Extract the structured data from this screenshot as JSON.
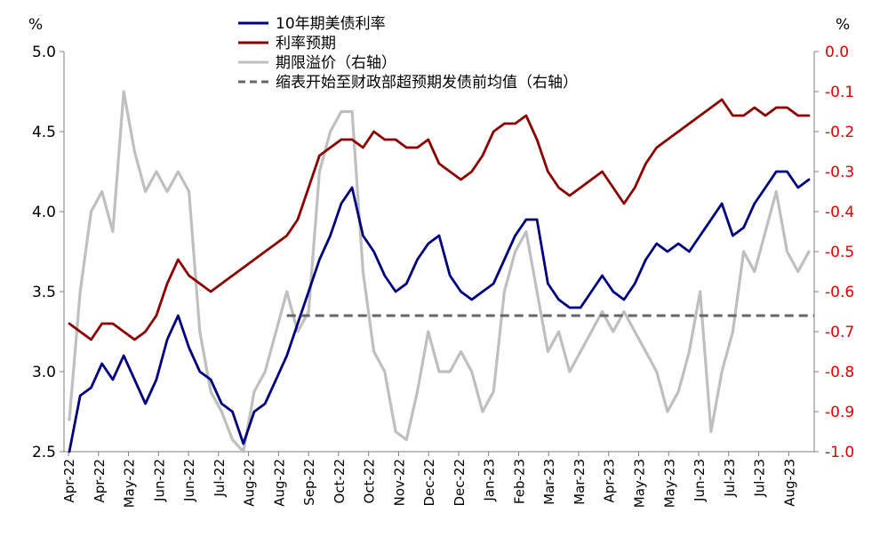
{
  "chart_data": {
    "type": "line",
    "title": "",
    "y_left": {
      "unit": "%",
      "range": [
        2.5,
        5.0
      ],
      "ticks": [
        "5.0",
        "4.5",
        "4.0",
        "3.5",
        "3.0",
        "2.5"
      ]
    },
    "y_right": {
      "unit": "%",
      "range": [
        -1.0,
        0.0
      ],
      "ticks": [
        "0.0",
        "-0.1",
        "-0.2",
        "-0.3",
        "-0.4",
        "-0.5",
        "-0.6",
        "-0.7",
        "-0.8",
        "-0.9",
        "-1.0"
      ],
      "color": "#e00000"
    },
    "x_ticks": [
      "Apr-22",
      "Apr-22",
      "May-22",
      "Jun-22",
      "Jun-22",
      "Jul-22",
      "Aug-22",
      "Aug-22",
      "Sep-22",
      "Oct-22",
      "Oct-22",
      "Nov-22",
      "Dec-22",
      "Dec-22",
      "Jan-23",
      "Feb-23",
      "Mar-23",
      "Mar-23",
      "Apr-23",
      "May-23",
      "May-23",
      "Jun-23",
      "Jul-23",
      "Jul-23",
      "Aug-23"
    ],
    "legend": [
      {
        "label": "10年期美债利率",
        "color": "#00007f",
        "style": "solid"
      },
      {
        "label": "利率预期",
        "color": "#8b0000",
        "style": "solid"
      },
      {
        "label": "期限溢价（右轴）",
        "color": "#bfbfbf",
        "style": "solid"
      },
      {
        "label": "缩表开始至财政部超预期发债前均值（右轴）",
        "color": "#666666",
        "style": "dashed"
      }
    ],
    "series": [
      {
        "name": "10年期美债利率",
        "axis": "left",
        "color": "#00007f",
        "values": [
          2.5,
          2.85,
          2.9,
          3.05,
          2.95,
          3.1,
          2.95,
          2.8,
          2.95,
          3.2,
          3.35,
          3.15,
          3.0,
          2.95,
          2.8,
          2.75,
          2.55,
          2.75,
          2.8,
          2.95,
          3.1,
          3.3,
          3.5,
          3.7,
          3.85,
          4.05,
          4.15,
          3.85,
          3.75,
          3.6,
          3.5,
          3.55,
          3.7,
          3.8,
          3.85,
          3.6,
          3.5,
          3.45,
          3.5,
          3.55,
          3.7,
          3.85,
          3.95,
          3.95,
          3.55,
          3.45,
          3.4,
          3.4,
          3.5,
          3.6,
          3.5,
          3.45,
          3.55,
          3.7,
          3.8,
          3.75,
          3.8,
          3.75,
          3.85,
          3.95,
          4.05,
          3.85,
          3.9,
          4.05,
          4.15,
          4.25,
          4.25,
          4.15,
          4.2
        ]
      },
      {
        "name": "利率预期",
        "axis": "left",
        "color": "#8b0000",
        "values": [
          3.3,
          3.25,
          3.2,
          3.3,
          3.3,
          3.25,
          3.2,
          3.25,
          3.35,
          3.55,
          3.7,
          3.6,
          3.55,
          3.5,
          3.55,
          3.6,
          3.65,
          3.7,
          3.75,
          3.8,
          3.85,
          3.95,
          4.15,
          4.35,
          4.4,
          4.45,
          4.45,
          4.4,
          4.5,
          4.45,
          4.45,
          4.4,
          4.4,
          4.45,
          4.3,
          4.25,
          4.2,
          4.25,
          4.35,
          4.5,
          4.55,
          4.55,
          4.6,
          4.45,
          4.25,
          4.15,
          4.1,
          4.15,
          4.2,
          4.25,
          4.15,
          4.05,
          4.15,
          4.3,
          4.4,
          4.45,
          4.5,
          4.55,
          4.6,
          4.65,
          4.7,
          4.6,
          4.6,
          4.65,
          4.6,
          4.65,
          4.65,
          4.6,
          4.6
        ]
      },
      {
        "name": "期限溢价（右轴）",
        "axis": "right",
        "color": "#bfbfbf",
        "values": [
          -0.92,
          -0.6,
          -0.4,
          -0.35,
          -0.45,
          -0.1,
          -0.25,
          -0.35,
          -0.3,
          -0.35,
          -0.3,
          -0.35,
          -0.7,
          -0.85,
          -0.9,
          -0.97,
          -1.0,
          -0.85,
          -0.8,
          -0.7,
          -0.6,
          -0.7,
          -0.65,
          -0.3,
          -0.2,
          -0.15,
          -0.15,
          -0.55,
          -0.75,
          -0.8,
          -0.95,
          -0.97,
          -0.85,
          -0.7,
          -0.8,
          -0.8,
          -0.75,
          -0.8,
          -0.9,
          -0.85,
          -0.6,
          -0.5,
          -0.45,
          -0.6,
          -0.75,
          -0.7,
          -0.8,
          -0.75,
          -0.7,
          -0.65,
          -0.7,
          -0.65,
          -0.7,
          -0.75,
          -0.8,
          -0.9,
          -0.85,
          -0.75,
          -0.6,
          -0.95,
          -0.8,
          -0.7,
          -0.5,
          -0.55,
          -0.45,
          -0.35,
          -0.5,
          -0.55,
          -0.5
        ]
      },
      {
        "name": "缩表开始至财政部超预期发债前均值（右轴）",
        "axis": "right",
        "color": "#666666",
        "dashed": true,
        "start_index": 20,
        "value": -0.66
      }
    ]
  }
}
